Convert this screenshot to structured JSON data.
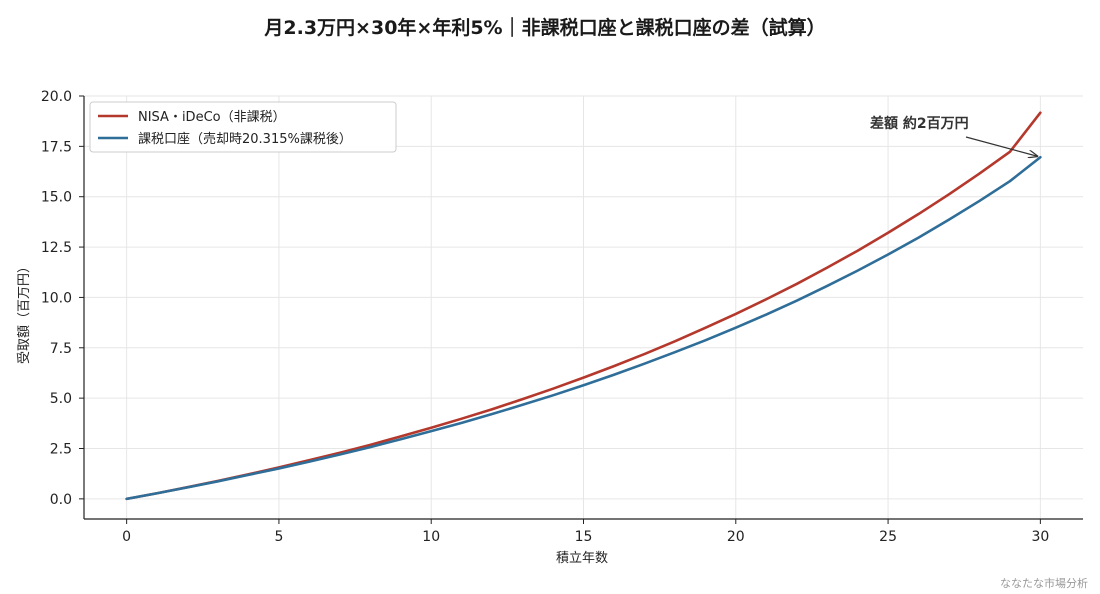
{
  "chart_data": {
    "type": "line",
    "title": "月2.3万円×30年×年利5%｜非課税口座と課税口座の差（試算）",
    "xlabel": "積立年数",
    "ylabel": "受取額（百万円）",
    "xlim": [
      -1.4,
      31.4
    ],
    "ylim": [
      -1.0,
      20.0
    ],
    "x_ticks": [
      0,
      5,
      10,
      15,
      20,
      25,
      30
    ],
    "y_ticks": [
      0.0,
      2.5,
      5.0,
      7.5,
      10.0,
      12.5,
      15.0,
      17.5,
      20.0
    ],
    "x_tick_labels": [
      "0",
      "5",
      "10",
      "15",
      "20",
      "25",
      "30"
    ],
    "y_tick_labels": [
      "0.0",
      "2.5",
      "5.0",
      "7.5",
      "10.0",
      "12.5",
      "15.0",
      "17.5",
      "20.0"
    ],
    "grid": true,
    "legend_position": "top-left",
    "x": [
      0,
      1,
      2,
      3,
      4,
      5,
      6,
      7,
      8,
      9,
      10,
      11,
      12,
      13,
      14,
      15,
      16,
      17,
      18,
      19,
      20,
      21,
      22,
      23,
      24,
      25,
      26,
      27,
      28,
      29,
      30
    ],
    "series": [
      {
        "name": "NISA・iDeCo（非課税）",
        "color": "#b5382c",
        "values": [
          0.0,
          0.28,
          0.58,
          0.89,
          1.22,
          1.56,
          1.92,
          2.29,
          2.68,
          3.1,
          3.53,
          3.98,
          4.45,
          4.95,
          5.47,
          6.02,
          6.59,
          7.19,
          7.82,
          8.49,
          9.18,
          9.91,
          10.67,
          11.48,
          12.32,
          13.21,
          14.14,
          15.12,
          16.15,
          17.23,
          19.17
        ]
      },
      {
        "name": "課税口座（売却時20.315%課税後）",
        "color": "#2f6e98",
        "values": [
          0.0,
          0.28,
          0.57,
          0.87,
          1.19,
          1.51,
          1.85,
          2.2,
          2.57,
          2.96,
          3.36,
          3.77,
          4.21,
          4.67,
          5.14,
          5.64,
          6.16,
          6.71,
          7.28,
          7.87,
          8.5,
          9.15,
          9.84,
          10.57,
          11.33,
          12.13,
          12.97,
          13.86,
          14.79,
          15.77,
          16.96
        ]
      }
    ],
    "annotation": {
      "text": "差額 約2百万円",
      "arrow_to_x": 30,
      "arrow_to_y": 16.96
    }
  },
  "watermark": "ななたな市場分析",
  "colors": {
    "background": "#ffffff",
    "grid": "#e6e6e6",
    "axis": "#222222"
  }
}
